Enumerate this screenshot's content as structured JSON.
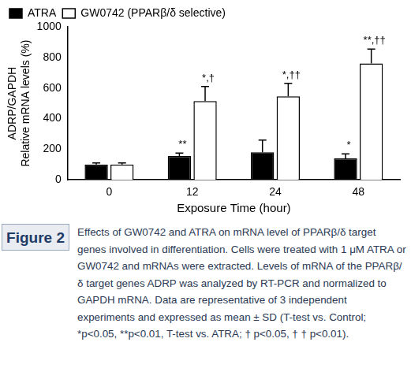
{
  "chart_data": {
    "type": "bar",
    "categories": [
      "0",
      "12",
      "24",
      "48"
    ],
    "xlabel": "Exposure Time (hour)",
    "ylabel": [
      "ADRP/GAPDH",
      "Relative mRNA levels (%)"
    ],
    "ylim": [
      0,
      1000
    ],
    "yticks": [
      0,
      200,
      400,
      600,
      800,
      1000
    ],
    "grid": false,
    "legend": "top",
    "series": [
      {
        "name": "ATRA",
        "color": "#000000",
        "values": [
          100,
          155,
          180,
          140
        ],
        "error": [
          10,
          20,
          80,
          30
        ],
        "annotations": [
          null,
          "**",
          null,
          "*"
        ]
      },
      {
        "name": "GW0742 (PPARβ/δ selective)",
        "color": "#ffffff",
        "values": [
          100,
          515,
          545,
          760
        ],
        "error": [
          10,
          95,
          85,
          95
        ],
        "annotations": [
          null,
          "*,†",
          "*,††",
          "**,††"
        ]
      }
    ]
  },
  "figure_label": "Figure 2",
  "caption": "Effects of GW0742 and ATRA on mRNA level of PPARβ/δ target genes involved in differentiation. Cells were treated with 1 μM ATRA or GW0742 and mRNAs were extracted. Levels of mRNA of the PPARβ/δ target genes ADRP was analyzed by RT-PCR and normalized to GAPDH mRNA. Data are representative of 3 independent experiments and expressed as mean ± SD (T-test vs. Control; *p<0.05, **p<0.01, T-test vs. ATRA; † p<0.05, † † p<0.01)."
}
